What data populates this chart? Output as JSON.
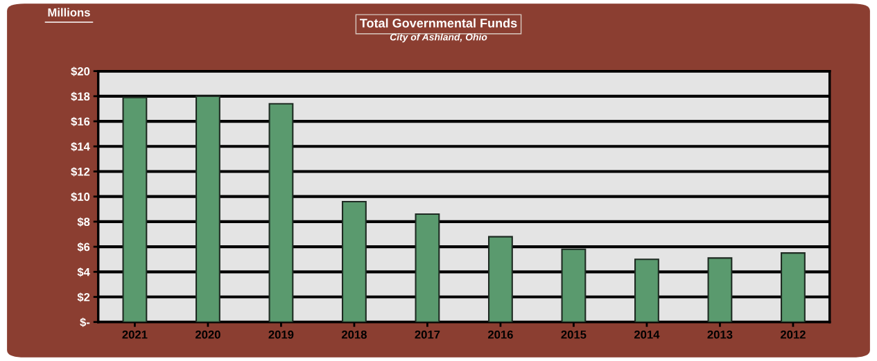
{
  "chart_data": {
    "type": "bar",
    "title": "Total Governmental Funds",
    "subtitle": "City of Ashland, Ohio",
    "ylabel": "Millions",
    "categories": [
      "2021",
      "2020",
      "2019",
      "2018",
      "2017",
      "2016",
      "2015",
      "2014",
      "2013",
      "2012"
    ],
    "values": [
      17.9,
      18.0,
      17.4,
      9.6,
      8.6,
      6.8,
      5.8,
      5.0,
      5.1,
      5.5
    ],
    "color": "#5a9a6e",
    "ylim": [
      0,
      20
    ],
    "yticks": [
      {
        "value": 0,
        "label": "$-"
      },
      {
        "value": 2,
        "label": "$2"
      },
      {
        "value": 4,
        "label": "$4"
      },
      {
        "value": 6,
        "label": "$6"
      },
      {
        "value": 8,
        "label": "$8"
      },
      {
        "value": 10,
        "label": "$10"
      },
      {
        "value": 12,
        "label": "$12"
      },
      {
        "value": 14,
        "label": "$14"
      },
      {
        "value": 16,
        "label": "$16"
      },
      {
        "value": 18,
        "label": "$18"
      },
      {
        "value": 20,
        "label": "$20"
      }
    ],
    "grid": "y",
    "legend": false
  }
}
